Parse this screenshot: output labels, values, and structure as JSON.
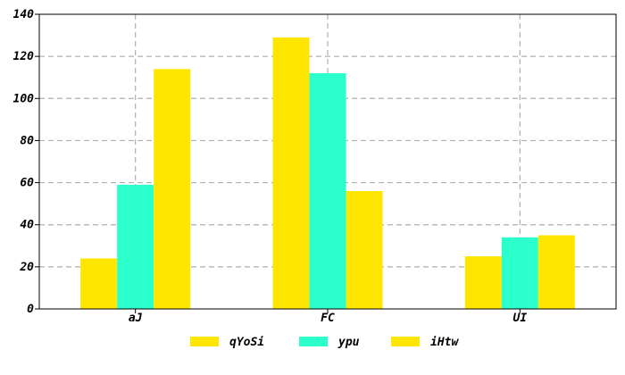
{
  "chart_data": {
    "type": "bar",
    "categories": [
      "aJ",
      "FC",
      "UI"
    ],
    "series": [
      {
        "name": "qYoSi",
        "color": "#ffe600",
        "values": [
          24,
          129,
          25
        ]
      },
      {
        "name": "ypu",
        "color": "#2bffcc",
        "values": [
          59,
          112,
          34
        ]
      },
      {
        "name": "iHtw",
        "color": "#ffe600",
        "values": [
          114,
          56,
          35
        ]
      }
    ],
    "title": "",
    "xlabel": "",
    "ylabel": "",
    "ylim": [
      0,
      140
    ],
    "yticks": [
      "0",
      "20",
      "40",
      "60",
      "80",
      "100",
      "120",
      "140"
    ],
    "grid": true,
    "legend_position": "bottom"
  }
}
